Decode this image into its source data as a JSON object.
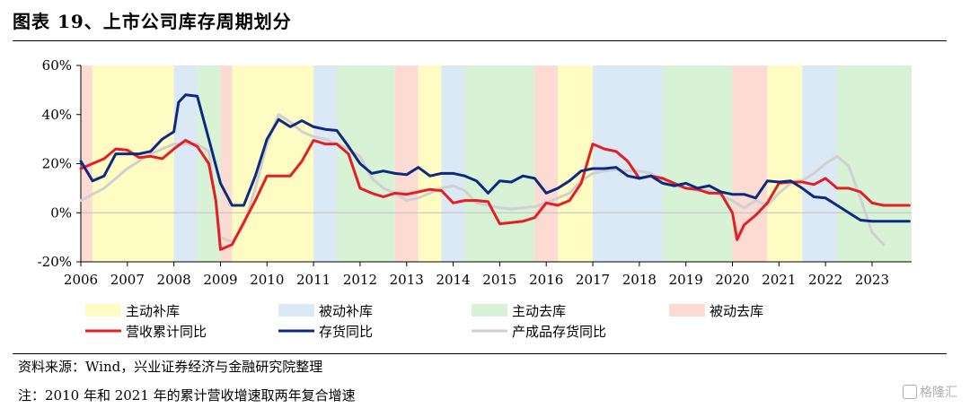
{
  "title": "图表 19、上市公司库存周期划分",
  "notes": {
    "source": "资料来源：Wind，兴业证券经济与金融研究院整理",
    "note": "注：2010 年和 2021 年的累计营收增速取两年复合增速"
  },
  "watermark": "格隆汇",
  "colors": {
    "revenue": "#e31e25",
    "inventory": "#0d2a80",
    "finished": "#d0d0d0",
    "phase_active_restock": "#fefcc3",
    "phase_passive_restock": "#dbe8f6",
    "phase_active_destock": "#d7f2d4",
    "phase_passive_destock": "#fcdcd2"
  },
  "chart_data": {
    "type": "line",
    "xlim": [
      2006,
      2023.85
    ],
    "ylim": [
      -20,
      60
    ],
    "yticks": [
      -20,
      0,
      20,
      40,
      60
    ],
    "ytick_labels": [
      "-20%",
      "0%",
      "20%",
      "40%",
      "60%"
    ],
    "xtick_labels": [
      "2006",
      "2007",
      "2008",
      "2009",
      "2010",
      "2011",
      "2012",
      "2013",
      "2014",
      "2015",
      "2016",
      "2017",
      "2018",
      "2019",
      "2020",
      "2021",
      "2022",
      "2023"
    ],
    "grid": false,
    "legend_position": "bottom",
    "phase_legend": [
      {
        "key": "active_restock",
        "label": "主动补库"
      },
      {
        "key": "passive_restock",
        "label": "被动补库"
      },
      {
        "key": "active_destock",
        "label": "主动去库"
      },
      {
        "key": "passive_destock",
        "label": "被动去库"
      }
    ],
    "phases": [
      {
        "start": 2006.0,
        "end": 2006.25,
        "key": "passive_destock"
      },
      {
        "start": 2006.25,
        "end": 2008.0,
        "key": "active_restock"
      },
      {
        "start": 2008.0,
        "end": 2008.5,
        "key": "passive_restock"
      },
      {
        "start": 2008.5,
        "end": 2009.0,
        "key": "active_destock"
      },
      {
        "start": 2009.0,
        "end": 2009.25,
        "key": "passive_destock"
      },
      {
        "start": 2009.25,
        "end": 2011.0,
        "key": "active_restock"
      },
      {
        "start": 2011.0,
        "end": 2011.5,
        "key": "passive_restock"
      },
      {
        "start": 2011.5,
        "end": 2012.75,
        "key": "active_destock"
      },
      {
        "start": 2012.75,
        "end": 2013.25,
        "key": "passive_destock"
      },
      {
        "start": 2013.25,
        "end": 2013.75,
        "key": "active_restock"
      },
      {
        "start": 2013.75,
        "end": 2014.25,
        "key": "passive_restock"
      },
      {
        "start": 2014.25,
        "end": 2015.75,
        "key": "active_destock"
      },
      {
        "start": 2015.75,
        "end": 2016.25,
        "key": "passive_destock"
      },
      {
        "start": 2016.25,
        "end": 2017.0,
        "key": "active_restock"
      },
      {
        "start": 2017.0,
        "end": 2018.5,
        "key": "passive_restock"
      },
      {
        "start": 2018.5,
        "end": 2020.0,
        "key": "active_destock"
      },
      {
        "start": 2020.0,
        "end": 2020.75,
        "key": "passive_destock"
      },
      {
        "start": 2020.75,
        "end": 2021.5,
        "key": "active_restock"
      },
      {
        "start": 2021.5,
        "end": 2022.25,
        "key": "passive_restock"
      },
      {
        "start": 2022.25,
        "end": 2023.85,
        "key": "active_destock"
      }
    ],
    "series": [
      {
        "name": "营收累计同比",
        "color_key": "revenue",
        "width": 3,
        "points": [
          [
            2006.0,
            18
          ],
          [
            2006.25,
            20
          ],
          [
            2006.5,
            22
          ],
          [
            2006.75,
            26
          ],
          [
            2007.0,
            25.5
          ],
          [
            2007.25,
            22.5
          ],
          [
            2007.5,
            23
          ],
          [
            2007.75,
            22
          ],
          [
            2008.0,
            26
          ],
          [
            2008.25,
            29.5
          ],
          [
            2008.5,
            27
          ],
          [
            2008.75,
            20
          ],
          [
            2008.9,
            5
          ],
          [
            2009.0,
            -15
          ],
          [
            2009.25,
            -13
          ],
          [
            2009.5,
            -4
          ],
          [
            2009.75,
            5
          ],
          [
            2010.0,
            15
          ],
          [
            2010.25,
            15
          ],
          [
            2010.5,
            15
          ],
          [
            2010.75,
            21
          ],
          [
            2011.0,
            29.5
          ],
          [
            2011.25,
            28
          ],
          [
            2011.5,
            28
          ],
          [
            2011.75,
            24
          ],
          [
            2012.0,
            10
          ],
          [
            2012.25,
            8
          ],
          [
            2012.5,
            6.5
          ],
          [
            2012.75,
            8
          ],
          [
            2013.0,
            7.5
          ],
          [
            2013.25,
            8.5
          ],
          [
            2013.5,
            9.5
          ],
          [
            2013.75,
            9
          ],
          [
            2014.0,
            4
          ],
          [
            2014.25,
            5
          ],
          [
            2014.5,
            5
          ],
          [
            2014.75,
            4.5
          ],
          [
            2015.0,
            -4.5
          ],
          [
            2015.25,
            -4
          ],
          [
            2015.5,
            -3.5
          ],
          [
            2015.75,
            -2
          ],
          [
            2016.0,
            4
          ],
          [
            2016.25,
            3
          ],
          [
            2016.5,
            5
          ],
          [
            2016.75,
            12
          ],
          [
            2017.0,
            28
          ],
          [
            2017.25,
            26
          ],
          [
            2017.5,
            25
          ],
          [
            2017.75,
            21
          ],
          [
            2018.0,
            14
          ],
          [
            2018.25,
            15
          ],
          [
            2018.5,
            14
          ],
          [
            2018.75,
            12
          ],
          [
            2019.0,
            10
          ],
          [
            2019.25,
            9.5
          ],
          [
            2019.5,
            8
          ],
          [
            2019.75,
            8
          ],
          [
            2020.0,
            0
          ],
          [
            2020.1,
            -11
          ],
          [
            2020.25,
            -5
          ],
          [
            2020.5,
            -1
          ],
          [
            2020.75,
            4
          ],
          [
            2021.0,
            12
          ],
          [
            2021.25,
            12.5
          ],
          [
            2021.5,
            12.5
          ],
          [
            2021.75,
            11.5
          ],
          [
            2022.0,
            14
          ],
          [
            2022.25,
            10
          ],
          [
            2022.5,
            10
          ],
          [
            2022.75,
            8.5
          ],
          [
            2023.0,
            4
          ],
          [
            2023.25,
            3
          ],
          [
            2023.5,
            3
          ],
          [
            2023.8,
            3
          ]
        ]
      },
      {
        "name": "存货同比",
        "color_key": "inventory",
        "width": 3,
        "points": [
          [
            2006.0,
            21
          ],
          [
            2006.25,
            13
          ],
          [
            2006.5,
            15
          ],
          [
            2006.75,
            24
          ],
          [
            2007.0,
            24
          ],
          [
            2007.25,
            24
          ],
          [
            2007.5,
            25
          ],
          [
            2007.75,
            30
          ],
          [
            2008.0,
            33
          ],
          [
            2008.1,
            45
          ],
          [
            2008.25,
            48
          ],
          [
            2008.5,
            47.5
          ],
          [
            2008.75,
            30
          ],
          [
            2009.0,
            12
          ],
          [
            2009.25,
            3
          ],
          [
            2009.5,
            3
          ],
          [
            2009.75,
            15
          ],
          [
            2010.0,
            30
          ],
          [
            2010.25,
            38
          ],
          [
            2010.5,
            35
          ],
          [
            2010.75,
            37.5
          ],
          [
            2011.0,
            35
          ],
          [
            2011.25,
            34
          ],
          [
            2011.5,
            33.5
          ],
          [
            2011.75,
            27
          ],
          [
            2012.0,
            20
          ],
          [
            2012.25,
            16
          ],
          [
            2012.5,
            17
          ],
          [
            2012.75,
            16
          ],
          [
            2013.0,
            15.5
          ],
          [
            2013.25,
            18.5
          ],
          [
            2013.5,
            15
          ],
          [
            2013.75,
            16
          ],
          [
            2014.0,
            16
          ],
          [
            2014.25,
            15
          ],
          [
            2014.5,
            13
          ],
          [
            2014.75,
            8
          ],
          [
            2015.0,
            13
          ],
          [
            2015.25,
            12.5
          ],
          [
            2015.5,
            15
          ],
          [
            2015.75,
            14
          ],
          [
            2016.0,
            8
          ],
          [
            2016.25,
            10
          ],
          [
            2016.5,
            13
          ],
          [
            2016.75,
            17
          ],
          [
            2017.0,
            18
          ],
          [
            2017.25,
            18
          ],
          [
            2017.5,
            18.5
          ],
          [
            2017.75,
            15
          ],
          [
            2018.0,
            14
          ],
          [
            2018.25,
            15
          ],
          [
            2018.5,
            12
          ],
          [
            2018.75,
            11
          ],
          [
            2019.0,
            12
          ],
          [
            2019.25,
            10
          ],
          [
            2019.5,
            11
          ],
          [
            2019.75,
            8.5
          ],
          [
            2020.0,
            7.5
          ],
          [
            2020.25,
            7.5
          ],
          [
            2020.5,
            6
          ],
          [
            2020.75,
            13
          ],
          [
            2021.0,
            12.5
          ],
          [
            2021.25,
            13
          ],
          [
            2021.5,
            10
          ],
          [
            2021.75,
            6.5
          ],
          [
            2022.0,
            6
          ],
          [
            2022.25,
            3
          ],
          [
            2022.5,
            0
          ],
          [
            2022.75,
            -3
          ],
          [
            2023.0,
            -3.5
          ],
          [
            2023.25,
            -3.5
          ],
          [
            2023.5,
            -3.5
          ],
          [
            2023.8,
            -3.5
          ]
        ]
      },
      {
        "name": "产成品存货同比",
        "color_key": "finished",
        "width": 3,
        "points": [
          [
            2006.0,
            5
          ],
          [
            2006.5,
            10
          ],
          [
            2007.0,
            18
          ],
          [
            2007.5,
            24
          ],
          [
            2008.0,
            28
          ],
          [
            2008.5,
            28
          ],
          [
            2008.75,
            25
          ],
          [
            2009.0,
            -10
          ],
          [
            2009.25,
            -12
          ],
          [
            2009.5,
            -5
          ],
          [
            2009.75,
            10
          ],
          [
            2010.0,
            28
          ],
          [
            2010.25,
            40
          ],
          [
            2010.5,
            37
          ],
          [
            2010.75,
            33
          ],
          [
            2011.0,
            31
          ],
          [
            2011.25,
            30
          ],
          [
            2011.5,
            28
          ],
          [
            2011.75,
            26
          ],
          [
            2012.0,
            23
          ],
          [
            2012.25,
            14
          ],
          [
            2012.5,
            10
          ],
          [
            2012.75,
            8
          ],
          [
            2013.0,
            5
          ],
          [
            2013.25,
            6
          ],
          [
            2013.5,
            8
          ],
          [
            2013.75,
            10
          ],
          [
            2014.0,
            11
          ],
          [
            2014.25,
            9
          ],
          [
            2014.5,
            4
          ],
          [
            2014.75,
            3
          ],
          [
            2015.0,
            2
          ],
          [
            2015.25,
            1.5
          ],
          [
            2015.5,
            2
          ],
          [
            2015.75,
            2.5
          ],
          [
            2016.0,
            4
          ],
          [
            2016.25,
            6
          ],
          [
            2016.5,
            8
          ],
          [
            2016.75,
            13
          ],
          [
            2017.0,
            16
          ],
          [
            2017.25,
            17
          ],
          [
            2017.5,
            17.5
          ],
          [
            2017.75,
            17
          ],
          [
            2018.0,
            17
          ],
          [
            2018.25,
            16
          ],
          [
            2018.5,
            13
          ],
          [
            2018.75,
            11
          ],
          [
            2019.0,
            10
          ],
          [
            2019.25,
            9
          ],
          [
            2019.5,
            9
          ],
          [
            2019.75,
            7
          ],
          [
            2020.0,
            5
          ],
          [
            2020.25,
            2
          ],
          [
            2020.5,
            5
          ],
          [
            2020.75,
            3
          ],
          [
            2021.0,
            8
          ],
          [
            2021.25,
            12
          ],
          [
            2021.5,
            13
          ],
          [
            2021.75,
            16
          ],
          [
            2022.0,
            20
          ],
          [
            2022.25,
            23
          ],
          [
            2022.5,
            19
          ],
          [
            2022.75,
            6
          ],
          [
            2023.0,
            -8
          ],
          [
            2023.25,
            -13
          ]
        ]
      }
    ]
  }
}
